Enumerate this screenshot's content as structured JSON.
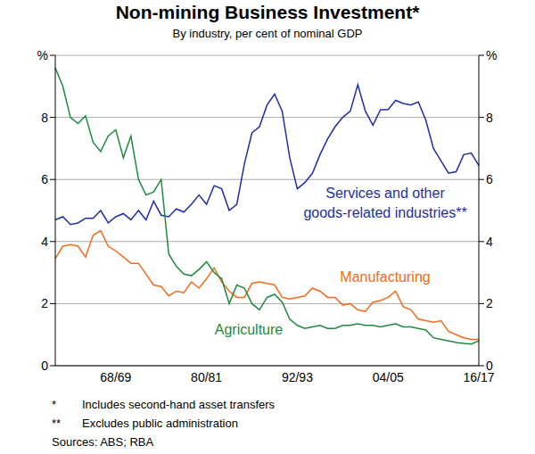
{
  "chart_data": {
    "type": "line",
    "title": "Non-mining Business Investment*",
    "subtitle": "By industry, per cent of nominal GDP",
    "categories": [
      null,
      null,
      null,
      null,
      null,
      null,
      null,
      null,
      "68/69",
      null,
      null,
      null,
      null,
      null,
      null,
      null,
      null,
      null,
      null,
      null,
      "80/81",
      null,
      null,
      null,
      null,
      null,
      null,
      null,
      null,
      null,
      null,
      null,
      "92/93",
      null,
      null,
      null,
      null,
      null,
      null,
      null,
      null,
      null,
      null,
      null,
      "04/05",
      null,
      null,
      null,
      null,
      null,
      null,
      null,
      null,
      null,
      null,
      null,
      "16/17"
    ],
    "series": [
      {
        "name": "Services and other goods-related industries**",
        "color": "#1f2ea6",
        "values": [
          4.7,
          4.8,
          4.55,
          4.6,
          4.75,
          4.75,
          5.0,
          4.6,
          4.8,
          4.9,
          4.7,
          5.0,
          4.7,
          5.3,
          4.85,
          4.8,
          5.05,
          4.95,
          5.2,
          5.5,
          5.2,
          5.8,
          5.7,
          5.0,
          5.2,
          6.5,
          7.5,
          7.7,
          8.4,
          8.75,
          8.2,
          6.7,
          5.7,
          5.9,
          6.2,
          6.8,
          7.3,
          7.7,
          8.0,
          8.2,
          9.05,
          8.2,
          7.75,
          8.25,
          8.25,
          8.55,
          8.45,
          8.4,
          8.5,
          7.9,
          7.0,
          6.6,
          6.2,
          6.25,
          6.8,
          6.85,
          6.45
        ]
      },
      {
        "name": "Manufacturing",
        "color": "#f26b1d",
        "values": [
          3.45,
          3.85,
          3.9,
          3.85,
          3.5,
          4.2,
          4.35,
          3.85,
          3.7,
          3.5,
          3.3,
          3.3,
          2.95,
          2.6,
          2.55,
          2.25,
          2.4,
          2.35,
          2.7,
          2.5,
          2.8,
          3.15,
          2.7,
          2.4,
          2.2,
          2.2,
          2.65,
          2.7,
          2.65,
          2.6,
          2.2,
          2.15,
          2.2,
          2.25,
          2.5,
          2.4,
          2.2,
          2.2,
          1.95,
          2.0,
          1.8,
          1.75,
          2.05,
          2.1,
          2.2,
          2.4,
          1.9,
          1.8,
          1.5,
          1.45,
          1.4,
          1.45,
          1.1,
          1.0,
          0.9,
          0.85,
          0.85
        ]
      },
      {
        "name": "Agriculture",
        "color": "#1e8a3c",
        "values": [
          9.6,
          9.0,
          8.0,
          7.8,
          8.05,
          7.2,
          6.9,
          7.4,
          7.6,
          6.7,
          7.4,
          6.0,
          5.5,
          5.6,
          6.0,
          3.6,
          3.2,
          2.95,
          2.9,
          3.1,
          3.35,
          3.0,
          2.8,
          2.0,
          2.6,
          2.5,
          2.0,
          1.8,
          2.2,
          2.3,
          2.05,
          1.5,
          1.3,
          1.2,
          1.25,
          1.3,
          1.2,
          1.2,
          1.3,
          1.3,
          1.35,
          1.3,
          1.3,
          1.25,
          1.3,
          1.35,
          1.25,
          1.25,
          1.2,
          1.15,
          0.9,
          0.85,
          0.8,
          0.75,
          0.72,
          0.7,
          0.8
        ]
      }
    ],
    "ylim": [
      0,
      10
    ],
    "yticks": [
      0,
      2,
      4,
      6,
      8,
      {
        "value": 10,
        "label": "%"
      }
    ],
    "grid": true,
    "notes": [
      {
        "mark": "*",
        "text": "Includes second-hand asset transfers"
      },
      {
        "mark": "**",
        "text": "Excludes public administration"
      }
    ],
    "sources": "Sources: ABS; RBA"
  }
}
